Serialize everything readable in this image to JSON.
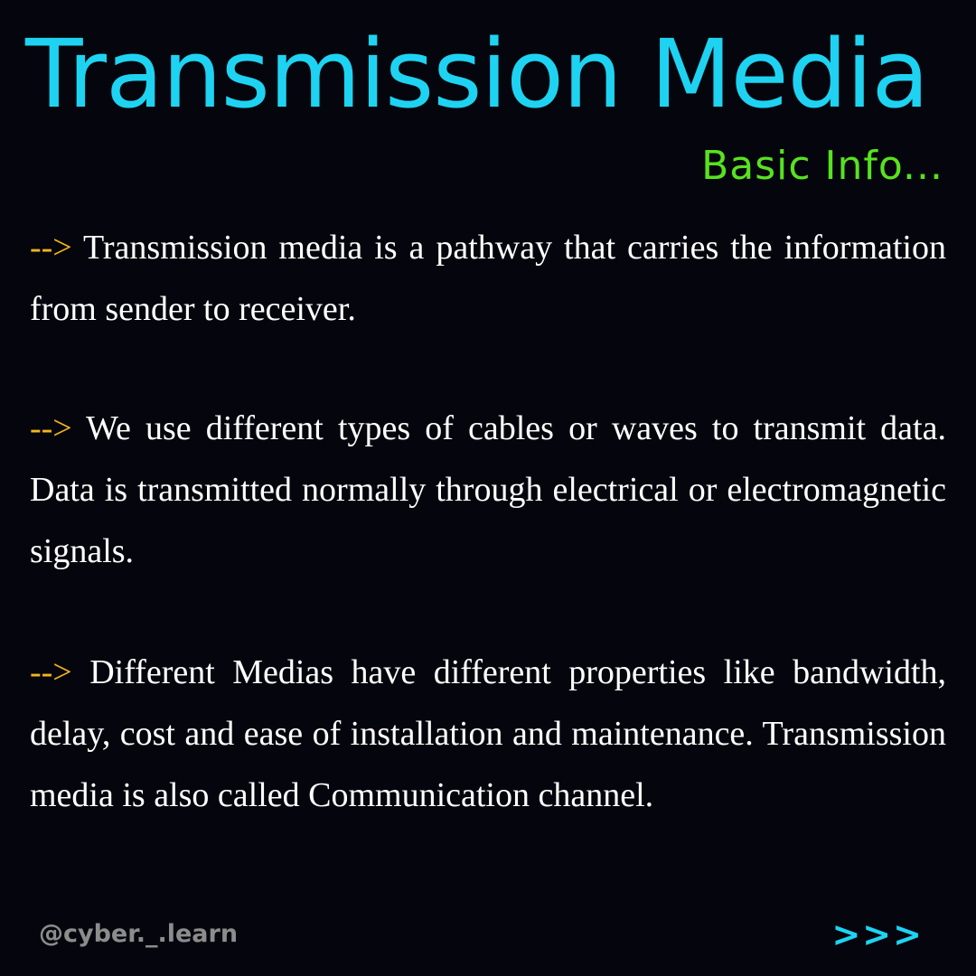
{
  "header": {
    "title": "Transmission Media",
    "subtitle": "Basic Info..."
  },
  "colors": {
    "background": "#05060d",
    "title": "#1ed3f2",
    "subtitle": "#58e21f",
    "arrow": "#f4b61b",
    "body_text": "#ffffff",
    "handle": "#8c8c8c"
  },
  "paragraphs": [
    {
      "marker": "-->",
      "text": "Transmission media is a pathway that carries the information from sender to receiver."
    },
    {
      "marker": "-->",
      "text": "We use different types of cables or waves to transmit data. Data is transmitted normally through electrical or electromagnetic signals."
    },
    {
      "marker": "-->",
      "text": "Different Medias have different properties like bandwidth, delay, cost and ease of installation and maintenance. Transmission media is also called Communication channel."
    }
  ],
  "footer": {
    "handle": "@cyber._.learn",
    "next_label": ">>>"
  }
}
